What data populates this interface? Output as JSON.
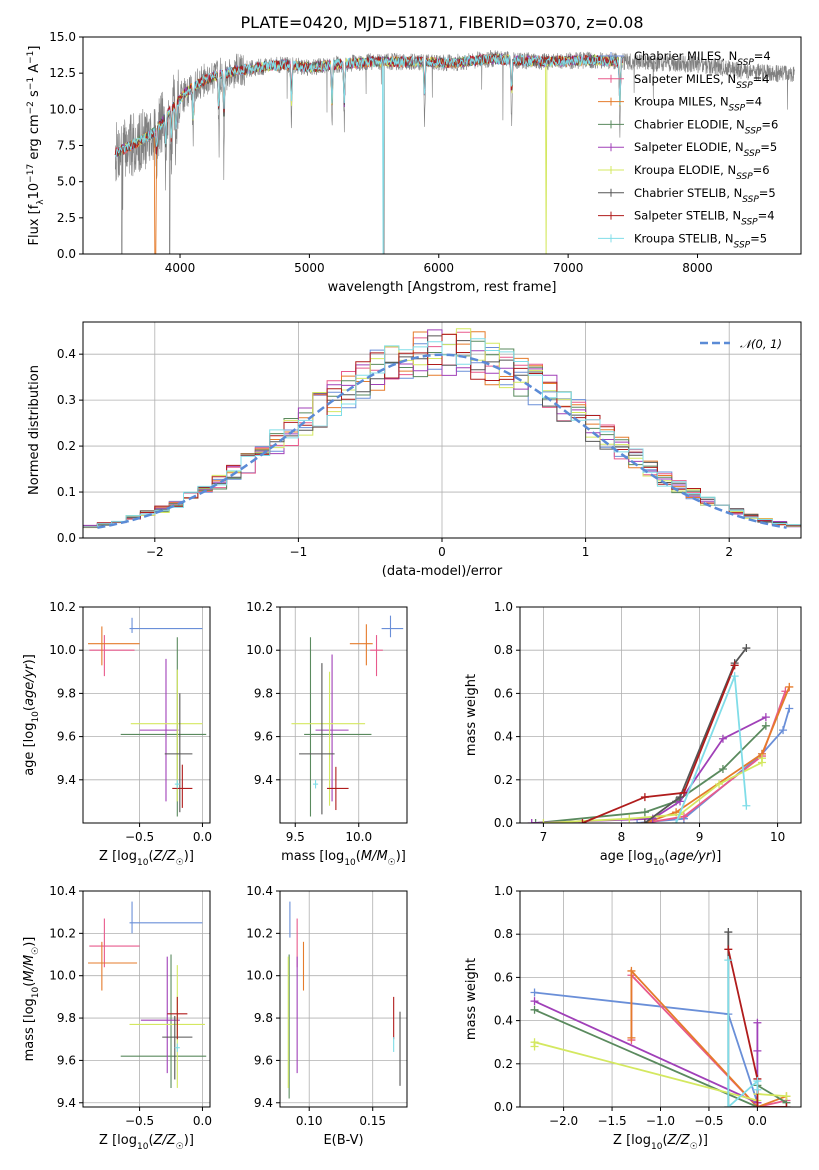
{
  "chart_data": [
    {
      "id": "spectrum",
      "type": "line",
      "title": "PLATE=0420, MJD=51871, FIBERID=0370, z=0.08",
      "xlabel": "wavelength [Angstrom, rest frame]",
      "ylabel": "Flux [f_λ 10^-17 erg cm^-2 s^-1 A^-1]",
      "xlim": [
        3250,
        8800
      ],
      "ylim": [
        0,
        15
      ],
      "xticks": [
        4000,
        5000,
        6000,
        7000,
        8000
      ],
      "yticks": [
        0.0,
        2.5,
        5.0,
        7.5,
        10.0,
        12.5,
        15.0
      ],
      "xtick_labels": [
        "4000",
        "5000",
        "6000",
        "7000",
        "8000"
      ],
      "ytick_labels": [
        "0.0",
        "2.5",
        "5.0",
        "7.5",
        "10.0",
        "12.5",
        "15.0"
      ],
      "grid": false,
      "legend_position": "top-right",
      "data_range": [
        3500,
        8750
      ],
      "model_range": [
        3500,
        7420
      ],
      "continuum": {
        "wavelength": [
          3500,
          3650,
          3800,
          3950,
          4050,
          4200,
          4400,
          4600,
          4800,
          5000,
          5200,
          5500,
          5800,
          6100,
          6400,
          6800,
          7200,
          7600,
          8000,
          8400,
          8750
        ],
        "flux": [
          7.0,
          7.6,
          8.4,
          10.2,
          11.2,
          12.1,
          12.6,
          12.9,
          13.1,
          12.9,
          13.1,
          13.3,
          13.3,
          13.2,
          13.5,
          13.3,
          13.4,
          13.2,
          13.1,
          12.6,
          12.4
        ]
      },
      "absorption_lines": [
        3820,
        3889,
        3933,
        3969,
        4102,
        4300,
        4340,
        4861,
        5175,
        5270,
        5890,
        6563,
        7400
      ],
      "series": [
        {
          "name": "Chabrier MILES, N_SSP=4",
          "color": "#6a8fd8"
        },
        {
          "name": "Salpeter MILES, N_SSP=4",
          "color": "#e85a8c"
        },
        {
          "name": "Kroupa MILES, N_SSP=4",
          "color": "#e57b2b"
        },
        {
          "name": "Chabrier ELODIE, N_SSP=6",
          "color": "#5a8a5e"
        },
        {
          "name": "Salpeter ELODIE, N_SSP=5",
          "color": "#a040b8"
        },
        {
          "name": "Kroupa ELODIE, N_SSP=6",
          "color": "#d4e860"
        },
        {
          "name": "Chabrier STELIB, N_SSP=5",
          "color": "#555555"
        },
        {
          "name": "Salpeter STELIB, N_SSP=4",
          "color": "#b01c1c"
        },
        {
          "name": "Kroupa STELIB, N_SSP=5",
          "color": "#80dde8"
        }
      ],
      "observed": {
        "color": "#808080"
      }
    },
    {
      "id": "residuals",
      "type": "histogram",
      "xlabel": "(data-model)/error",
      "ylabel": "Normed distribution",
      "xlim": [
        -2.5,
        2.5
      ],
      "ylim": [
        0,
        0.47
      ],
      "xticks": [
        -2,
        -1,
        0,
        1,
        2
      ],
      "yticks": [
        0.0,
        0.1,
        0.2,
        0.3,
        0.4
      ],
      "xtick_labels": [
        "−2",
        "−1",
        "0",
        "1",
        "2"
      ],
      "ytick_labels": [
        "0.0",
        "0.1",
        "0.2",
        "0.3",
        "0.4"
      ],
      "grid": true,
      "legend_position": "top-right",
      "bin_width": 0.1,
      "bin_start": -2.6,
      "bin_count": 52,
      "reference_curve": {
        "label": "𝒩(0, 1)",
        "color": "#5b8bd6",
        "mean": 0,
        "sigma": 1
      }
    },
    {
      "id": "age-vs-z",
      "type": "errorbar",
      "xlabel": "Z [log10(Z/Z☉)]",
      "ylabel": "age [log10(age/yr)]",
      "xlim": [
        -0.95,
        0.06
      ],
      "ylim": [
        9.2,
        10.2
      ],
      "xticks": [
        -0.5,
        0.0
      ],
      "yticks": [
        9.4,
        9.6,
        9.8,
        10.0,
        10.2
      ],
      "xtick_labels": [
        "−0.5",
        "0.0"
      ],
      "ytick_labels": [
        "9.4",
        "9.6",
        "9.8",
        "10.0",
        "10.2"
      ],
      "grid": true,
      "points": [
        {
          "color": "#6a8fd8",
          "x": -0.56,
          "xerr": [
            0.02,
            0.56
          ],
          "y": 10.1,
          "yerr": [
            0.02,
            0.05
          ]
        },
        {
          "color": "#e85a8c",
          "x": -0.78,
          "xerr": [
            0.12,
            0.24
          ],
          "y": 10.0,
          "yerr": [
            0.12,
            0.07
          ]
        },
        {
          "color": "#e57b2b",
          "x": -0.8,
          "xerr": [
            0.11,
            0.3
          ],
          "y": 10.03,
          "yerr": [
            0.1,
            0.08
          ]
        },
        {
          "color": "#5a8a5e",
          "x": -0.2,
          "xerr": [
            0.45,
            0.23
          ],
          "y": 9.61,
          "yerr": [
            0.38,
            0.45
          ]
        },
        {
          "color": "#a040b8",
          "x": -0.29,
          "xerr": [
            0.21,
            0.1
          ],
          "y": 9.63,
          "yerr": [
            0.33,
            0.33
          ]
        },
        {
          "color": "#d4e860",
          "x": -0.2,
          "xerr": [
            0.37,
            0.2
          ],
          "y": 9.66,
          "yerr": [
            0.36,
            0.25
          ]
        },
        {
          "color": "#555555",
          "x": -0.18,
          "xerr": [
            0.12,
            0.1
          ],
          "y": 9.52,
          "yerr": [
            0.27,
            0.28
          ]
        },
        {
          "color": "#b01c1c",
          "x": -0.16,
          "xerr": [
            0.08,
            0.08
          ],
          "y": 9.36,
          "yerr": [
            0.09,
            0.11
          ]
        },
        {
          "color": "#80dde8",
          "x": -0.2,
          "xerr": [
            0.02,
            0.02
          ],
          "y": 9.38,
          "yerr": [
            0.02,
            0.02
          ]
        }
      ]
    },
    {
      "id": "age-vs-mass",
      "type": "errorbar",
      "xlabel": "mass [log10(M/M☉)]",
      "ylabel": "",
      "xlim": [
        9.38,
        10.38
      ],
      "ylim": [
        9.2,
        10.2
      ],
      "xticks": [
        9.5,
        10.0
      ],
      "yticks": [
        9.4,
        9.6,
        9.8,
        10.0,
        10.2
      ],
      "xtick_labels": [
        "9.5",
        "10.0"
      ],
      "ytick_labels": [
        "9.4",
        "9.6",
        "9.8",
        "10.0",
        "10.2"
      ],
      "grid": true,
      "points": [
        {
          "color": "#6a8fd8",
          "x": 10.25,
          "xerr": [
            0.07,
            0.1
          ],
          "y": 10.1,
          "yerr": [
            0.04,
            0.06
          ]
        },
        {
          "color": "#e85a8c",
          "x": 10.14,
          "xerr": [
            0.05,
            0.05
          ],
          "y": 10.0,
          "yerr": [
            0.12,
            0.07
          ]
        },
        {
          "color": "#e57b2b",
          "x": 10.06,
          "xerr": [
            0.13,
            0.05
          ],
          "y": 10.03,
          "yerr": [
            0.1,
            0.09
          ]
        },
        {
          "color": "#5a8a5e",
          "x": 9.62,
          "xerr": [
            0.05,
            0.48
          ],
          "y": 9.61,
          "yerr": [
            0.38,
            0.45
          ]
        },
        {
          "color": "#a040b8",
          "x": 9.79,
          "xerr": [
            0.13,
            0.13
          ],
          "y": 9.63,
          "yerr": [
            0.33,
            0.35
          ]
        },
        {
          "color": "#d4e860",
          "x": 9.77,
          "xerr": [
            0.3,
            0.28
          ],
          "y": 9.66,
          "yerr": [
            0.38,
            0.24
          ]
        },
        {
          "color": "#555555",
          "x": 9.71,
          "xerr": [
            0.18,
            0.1
          ],
          "y": 9.52,
          "yerr": [
            0.28,
            0.42
          ]
        },
        {
          "color": "#b01c1c",
          "x": 9.82,
          "xerr": [
            0.07,
            0.1
          ],
          "y": 9.36,
          "yerr": [
            0.1,
            0.1
          ]
        },
        {
          "color": "#80dde8",
          "x": 9.66,
          "xerr": [
            0.02,
            0.02
          ],
          "y": 9.38,
          "yerr": [
            0.02,
            0.02
          ]
        }
      ]
    },
    {
      "id": "massweight-vs-age",
      "type": "line",
      "xlabel": "age [log10(age/yr)]",
      "ylabel": "mass weight",
      "xlim": [
        6.7,
        10.3
      ],
      "ylim": [
        0,
        1.0
      ],
      "xticks": [
        7,
        8,
        9,
        10
      ],
      "yticks": [
        0.0,
        0.2,
        0.4,
        0.6,
        0.8,
        1.0
      ],
      "xtick_labels": [
        "7",
        "8",
        "9",
        "10"
      ],
      "ytick_labels": [
        "0.0",
        "0.2",
        "0.4",
        "0.6",
        "0.8",
        "1.0"
      ],
      "grid": true,
      "marker": "+",
      "series": [
        {
          "color": "#6a8fd8",
          "x": [
            8.2,
            8.8,
            9.8,
            10.07,
            10.15
          ],
          "y": [
            0.0,
            0.02,
            0.32,
            0.43,
            0.53
          ]
        },
        {
          "color": "#e85a8c",
          "x": [
            8.3,
            8.8,
            9.8,
            10.1
          ],
          "y": [
            0.0,
            0.03,
            0.31,
            0.61
          ]
        },
        {
          "color": "#e57b2b",
          "x": [
            8.3,
            8.7,
            9.8,
            10.15
          ],
          "y": [
            0.0,
            0.05,
            0.32,
            0.63
          ]
        },
        {
          "color": "#5a8a5e",
          "x": [
            6.9,
            8.3,
            8.7,
            9.3,
            9.85
          ],
          "y": [
            0.0,
            0.05,
            0.1,
            0.25,
            0.45
          ]
        },
        {
          "color": "#a040b8",
          "x": [
            6.85,
            8.4,
            8.75,
            9.3,
            9.85
          ],
          "y": [
            0.0,
            0.02,
            0.1,
            0.39,
            0.49
          ]
        },
        {
          "color": "#d4e860",
          "x": [
            7.0,
            8.1,
            8.75,
            9.25,
            9.8,
            9.8
          ],
          "y": [
            0.0,
            0.02,
            0.04,
            0.18,
            0.28,
            0.3
          ]
        },
        {
          "color": "#555555",
          "x": [
            8.3,
            8.75,
            9.45,
            9.6
          ],
          "y": [
            0.0,
            0.12,
            0.74,
            0.81
          ]
        },
        {
          "color": "#b01c1c",
          "x": [
            7.5,
            8.3,
            8.8,
            9.45
          ],
          "y": [
            0.0,
            0.12,
            0.14,
            0.73
          ]
        },
        {
          "color": "#80dde8",
          "x": [
            8.7,
            9.45,
            9.6
          ],
          "y": [
            0.0,
            0.68,
            0.08
          ]
        }
      ]
    },
    {
      "id": "mass-vs-z",
      "type": "errorbar",
      "xlabel": "Z [log10(Z/Z☉)]",
      "ylabel": "mass [log10(M/M☉)]",
      "xlim": [
        -0.95,
        0.06
      ],
      "ylim": [
        9.38,
        10.4
      ],
      "xticks": [
        -0.5,
        0.0
      ],
      "yticks": [
        9.4,
        9.6,
        9.8,
        10.0,
        10.2,
        10.4
      ],
      "xtick_labels": [
        "−0.5",
        "0.0"
      ],
      "ytick_labels": [
        "9.4",
        "9.6",
        "9.8",
        "10.0",
        "10.2",
        "10.4"
      ],
      "grid": true,
      "points": [
        {
          "color": "#6a8fd8",
          "x": -0.56,
          "xerr": [
            0.02,
            0.56
          ],
          "y": 10.25,
          "yerr": [
            0.05,
            0.1
          ]
        },
        {
          "color": "#e85a8c",
          "x": -0.78,
          "xerr": [
            0.12,
            0.28
          ],
          "y": 10.14,
          "yerr": [
            0.1,
            0.13
          ]
        },
        {
          "color": "#e57b2b",
          "x": -0.8,
          "xerr": [
            0.11,
            0.28
          ],
          "y": 10.06,
          "yerr": [
            0.13,
            0.1
          ]
        },
        {
          "color": "#5a8a5e",
          "x": -0.25,
          "xerr": [
            0.4,
            0.28
          ],
          "y": 9.62,
          "yerr": [
            0.15,
            0.48
          ]
        },
        {
          "color": "#a040b8",
          "x": -0.28,
          "xerr": [
            0.21,
            0.1
          ],
          "y": 9.79,
          "yerr": [
            0.25,
            0.3
          ]
        },
        {
          "color": "#d4e860",
          "x": -0.2,
          "xerr": [
            0.38,
            0.22
          ],
          "y": 9.77,
          "yerr": [
            0.3,
            0.28
          ]
        },
        {
          "color": "#555555",
          "x": -0.22,
          "xerr": [
            0.1,
            0.14
          ],
          "y": 9.71,
          "yerr": [
            0.2,
            0.1
          ]
        },
        {
          "color": "#b01c1c",
          "x": -0.2,
          "xerr": [
            0.08,
            0.08
          ],
          "y": 9.82,
          "yerr": [
            0.12,
            0.08
          ]
        },
        {
          "color": "#80dde8",
          "x": -0.2,
          "xerr": [
            0.02,
            0.02
          ],
          "y": 9.66,
          "yerr": [
            0.02,
            0.02
          ]
        }
      ]
    },
    {
      "id": "mass-vs-ebv",
      "type": "errorbar",
      "xlabel": "E(B-V)",
      "ylabel": "",
      "xlim": [
        0.077,
        0.177
      ],
      "ylim": [
        9.38,
        10.4
      ],
      "xticks": [
        0.1,
        0.15
      ],
      "yticks": [
        9.4,
        9.6,
        9.8,
        10.0,
        10.2,
        10.4
      ],
      "xtick_labels": [
        "0.10",
        "0.15"
      ],
      "ytick_labels": [
        "9.4",
        "9.6",
        "9.8",
        "10.0",
        "10.2",
        "10.4"
      ],
      "grid": true,
      "points": [
        {
          "color": "#6a8fd8",
          "x": 0.0848,
          "y": 10.25,
          "yerr": [
            0.07,
            0.1
          ]
        },
        {
          "color": "#e85a8c",
          "x": 0.0905,
          "y": 10.14,
          "yerr": [
            0.1,
            0.13
          ]
        },
        {
          "color": "#e57b2b",
          "x": 0.0955,
          "y": 10.06,
          "yerr": [
            0.13,
            0.1
          ]
        },
        {
          "color": "#5a8a5e",
          "x": 0.0842,
          "y": 9.62,
          "yerr": [
            0.2,
            0.48
          ]
        },
        {
          "color": "#a040b8",
          "x": 0.0905,
          "y": 9.79,
          "yerr": [
            0.25,
            0.3
          ]
        },
        {
          "color": "#d4e860",
          "x": 0.0835,
          "y": 9.77,
          "yerr": [
            0.3,
            0.32
          ]
        },
        {
          "color": "#555555",
          "x": 0.1715,
          "y": 9.71,
          "yerr": [
            0.23,
            0.12
          ]
        },
        {
          "color": "#b01c1c",
          "x": 0.1665,
          "y": 9.82,
          "yerr": [
            0.12,
            0.08
          ]
        },
        {
          "color": "#80dde8",
          "x": 0.1665,
          "y": 9.66,
          "yerr": [
            0.02,
            0.05
          ]
        }
      ]
    },
    {
      "id": "massweight-vs-z",
      "type": "line",
      "xlabel": "Z [log10(Z/Z☉)]",
      "ylabel": "mass weight",
      "xlim": [
        -2.45,
        0.45
      ],
      "ylim": [
        0,
        1.0
      ],
      "xticks": [
        -2.0,
        -1.5,
        -1.0,
        -0.5,
        0.0
      ],
      "yticks": [
        0.0,
        0.2,
        0.4,
        0.6,
        0.8,
        1.0
      ],
      "xtick_labels": [
        "−2.0",
        "−1.5",
        "−1.0",
        "−0.5",
        "0.0"
      ],
      "ytick_labels": [
        "0.0",
        "0.2",
        "0.4",
        "0.6",
        "0.8",
        "1.0"
      ],
      "grid": true,
      "marker": "+",
      "series": [
        {
          "color": "#6a8fd8",
          "x": [
            -2.3,
            -0.3,
            0.0,
            0.0
          ],
          "y": [
            0.53,
            0.43,
            0.02,
            0.0
          ]
        },
        {
          "color": "#e85a8c",
          "x": [
            -1.3,
            -1.3,
            0.0,
            0.3
          ],
          "y": [
            0.31,
            0.61,
            0.0,
            0.03
          ]
        },
        {
          "color": "#e57b2b",
          "x": [
            -1.3,
            -1.3,
            0.0,
            0.3
          ],
          "y": [
            0.32,
            0.63,
            0.0,
            0.05
          ]
        },
        {
          "color": "#5a8a5e",
          "x": [
            -2.3,
            0.0,
            0.0,
            0.3
          ],
          "y": [
            0.45,
            0.0,
            0.1,
            0.02
          ]
        },
        {
          "color": "#a040b8",
          "x": [
            -2.3,
            0.0,
            0.0,
            0.0
          ],
          "y": [
            0.49,
            0.02,
            0.26,
            0.39
          ]
        },
        {
          "color": "#d4e860",
          "x": [
            -2.3,
            -2.3,
            0.0,
            0.0,
            0.3
          ],
          "y": [
            0.28,
            0.3,
            0.03,
            0.06,
            0.05
          ]
        },
        {
          "color": "#555555",
          "x": [
            -0.3,
            -0.3,
            0.0,
            0.3
          ],
          "y": [
            0.81,
            0.0,
            0.0,
            0.0
          ]
        },
        {
          "color": "#b01c1c",
          "x": [
            -0.3,
            0.0,
            0.0,
            0.3
          ],
          "y": [
            0.73,
            0.13,
            0.0,
            0.0
          ]
        },
        {
          "color": "#80dde8",
          "x": [
            -0.3,
            -0.3,
            0.0,
            0.0
          ],
          "y": [
            0.68,
            0.0,
            0.12,
            0.08
          ]
        }
      ]
    }
  ]
}
